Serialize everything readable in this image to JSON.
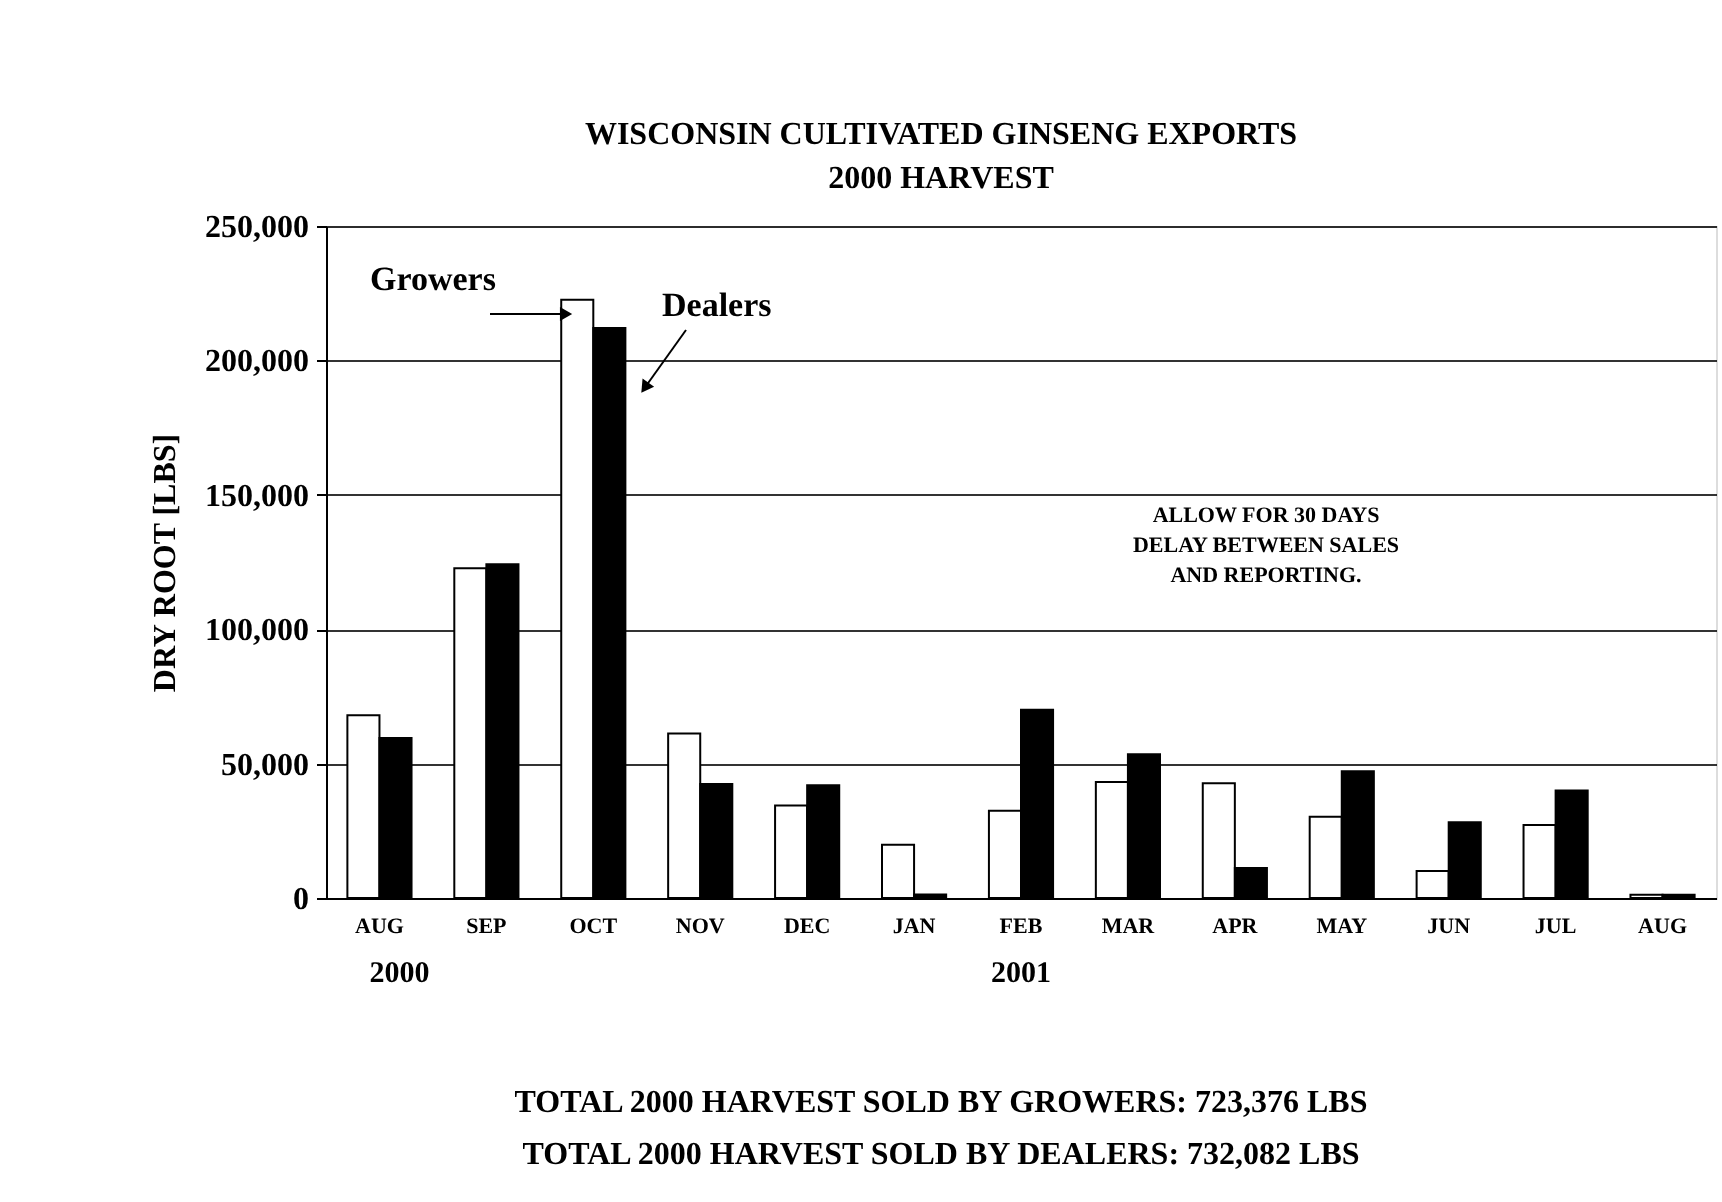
{
  "chart_data": {
    "type": "bar",
    "title": [
      "WISCONSIN CULTIVATED GINSENG EXPORTS",
      "2000 HARVEST"
    ],
    "ylabel": "DRY ROOT [LBS]",
    "categories": [
      "AUG",
      "SEP",
      "OCT",
      "NOV",
      "DEC",
      "JAN",
      "FEB",
      "MAR",
      "APR",
      "MAY",
      "JUN",
      "JUL",
      "AUG"
    ],
    "series": [
      {
        "name": "Growers",
        "color": "#ffffff",
        "values": [
          68000,
          122700,
          222600,
          61200,
          34400,
          19800,
          32500,
          43200,
          42700,
          30200,
          10000,
          27200,
          1200
        ]
      },
      {
        "name": "Dealers",
        "color": "#000000",
        "values": [
          59500,
          124200,
          212100,
          42400,
          41900,
          1300,
          70000,
          53500,
          11200,
          47200,
          28200,
          40000,
          1200
        ]
      }
    ],
    "ylim": [
      0,
      250000
    ],
    "yticks": [
      0,
      {
        "value": 50000,
        "label": "50,000"
      },
      {
        "value": 100000,
        "label": "100,000"
      },
      {
        "value": 150000,
        "label": "150,000"
      },
      {
        "value": 200000,
        "label": "200,000"
      },
      {
        "value": 250000,
        "label": "250,000"
      }
    ],
    "grid": "y",
    "legend": false,
    "annotations": [
      "2000",
      "2001",
      "ALLOW FOR 30 DAYS\nDELAY BETWEEN SALES\nAND REPORTING.",
      "TOTAL 2000 HARVEST SOLD BY GROWERS:  723,376 LBS",
      "TOTAL 2000 HARVEST SOLD BY DEALERS:     732,082 LBS"
    ]
  }
}
